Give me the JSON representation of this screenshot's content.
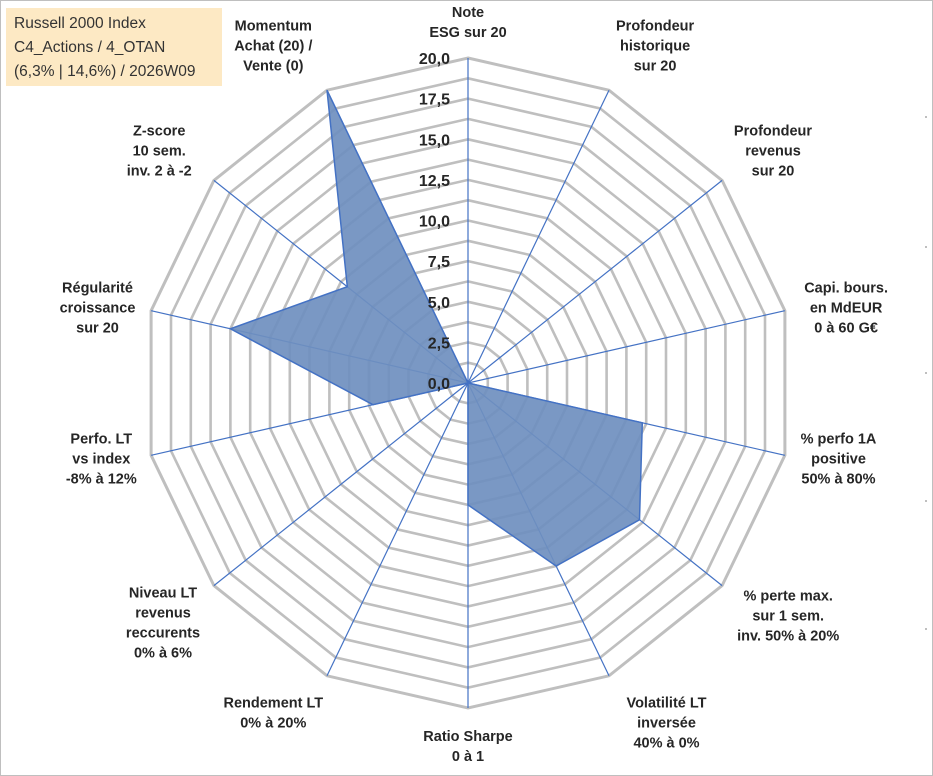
{
  "info": {
    "line1": "Russell 2000 Index",
    "line2": "C4_Actions / 4_OTAN",
    "line3": "(6,3% | 14,6%) / 2026W09"
  },
  "chart_data": {
    "type": "radar",
    "title": "",
    "range": [
      0,
      20
    ],
    "tick_step": 2.5,
    "ticks": [
      "0,0",
      "2,5",
      "5,0",
      "7,5",
      "10,0",
      "12,5",
      "15,0",
      "17,5",
      "20,0"
    ],
    "grid": true,
    "fill_color": "#6f8fbf",
    "line_color": "#4472c4",
    "grid_color": "#bfbfbf",
    "axes": [
      {
        "label": [
          "Note",
          "ESG sur 20"
        ],
        "value": 0
      },
      {
        "label": [
          "Profondeur",
          "historique",
          "sur 20"
        ],
        "value": 0
      },
      {
        "label": [
          "Profondeur",
          "revenus",
          "sur 20"
        ],
        "value": 0
      },
      {
        "label": [
          "Capi. bours.",
          "en MdEUR",
          "0 à 60 G€"
        ],
        "value": 0
      },
      {
        "label": [
          "% perfo 1A",
          "positive",
          "50% à 80%"
        ],
        "value": 11
      },
      {
        "label": [
          "% perte max.",
          "sur 1 sem.",
          "inv. 50% à 20%"
        ],
        "value": 13.5
      },
      {
        "label": [
          "Volatilité LT",
          "inversée",
          "40% à 0%"
        ],
        "value": 12.5
      },
      {
        "label": [
          "Ratio Sharpe",
          "0 à 1"
        ],
        "value": 7.5
      },
      {
        "label": [
          "Rendement LT",
          "0% à 20%"
        ],
        "value": 0
      },
      {
        "label": [
          "Niveau LT",
          "revenus",
          "reccurents",
          "0% à 6%"
        ],
        "value": 0
      },
      {
        "label": [
          "Perfo. LT",
          "vs index",
          "-8% à 12%"
        ],
        "value": 6
      },
      {
        "label": [
          "Régularité",
          "croissance",
          "sur 20"
        ],
        "value": 15
      },
      {
        "label": [
          "Z-score",
          "10 sem.",
          "inv. 2 à -2"
        ],
        "value": 9.5
      },
      {
        "label": [
          "Momentum",
          "Achat (20) /",
          "Vente (0)"
        ],
        "value": 20
      }
    ]
  }
}
